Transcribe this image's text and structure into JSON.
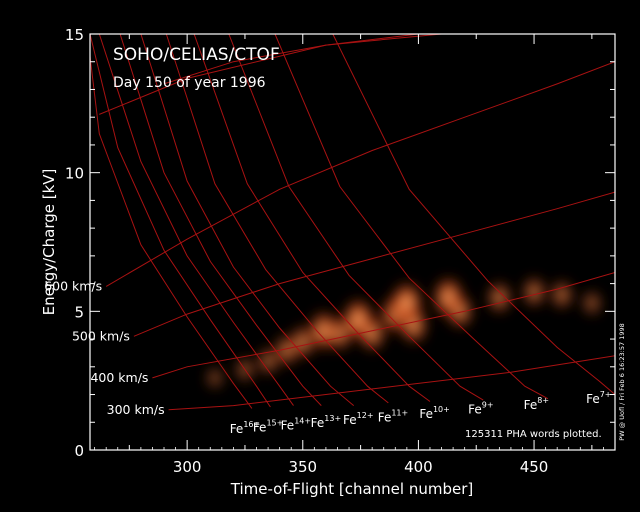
{
  "chart_data": {
    "type": "heatmap",
    "title": "SOHO/CELIAS/CTOF",
    "subtitle": "Day 150 of year 1996",
    "xlabel": "Time-of-Flight [channel number]",
    "ylabel": "Energy/Charge [kV]",
    "xlim": [
      258,
      485
    ],
    "ylim": [
      0,
      15
    ],
    "xticks": [
      "300",
      "350",
      "400",
      "450"
    ],
    "yticks": [
      "0",
      "5",
      "10",
      "15"
    ],
    "colors": {
      "background": "#000000",
      "frame": "#ffffff",
      "grid": "#a81212",
      "text": "#ffffff",
      "density_low": "#8a1a00",
      "density_high": "#ffb070"
    },
    "speed_labels": [
      {
        "text": "600 km/s",
        "speed": 600,
        "x_end": 265,
        "y_end": 5.9
      },
      {
        "text": "500 km/s",
        "speed": 500,
        "x_end": 277,
        "y_end": 4.1
      },
      {
        "text": "400 km/s",
        "speed": 400,
        "x_end": 285,
        "y_end": 2.6
      },
      {
        "text": "300 km/s",
        "speed": 300,
        "x_end": 292,
        "y_end": 1.45
      }
    ],
    "ion_labels": [
      {
        "base": "Fe",
        "charge": "16+",
        "x": 325,
        "y": 0.9
      },
      {
        "base": "Fe",
        "charge": "15+",
        "x": 335,
        "y": 0.96
      },
      {
        "base": "Fe",
        "charge": "14+",
        "x": 347,
        "y": 1.02
      },
      {
        "base": "Fe",
        "charge": "13+",
        "x": 360,
        "y": 1.12
      },
      {
        "base": "Fe",
        "charge": "12+",
        "x": 374,
        "y": 1.22
      },
      {
        "base": "Fe",
        "charge": "11+",
        "x": 389,
        "y": 1.32
      },
      {
        "base": "Fe",
        "charge": "10+",
        "x": 407,
        "y": 1.45
      },
      {
        "base": "Fe",
        "charge": "9+",
        "x": 427,
        "y": 1.6
      },
      {
        "base": "Fe",
        "charge": "8+",
        "x": 451,
        "y": 1.77
      },
      {
        "base": "Fe",
        "charge": "7+",
        "x": 478,
        "y": 1.98
      }
    ],
    "ion_tracks": [
      {
        "charge": 16,
        "x": [
          258,
          262,
          280,
          300,
          320,
          328
        ],
        "y": [
          14.2,
          11.4,
          7.4,
          4.8,
          2.4,
          1.5
        ]
      },
      {
        "charge": 15,
        "x": [
          258,
          270,
          290,
          310,
          330,
          336
        ],
        "y": [
          15,
          10.9,
          7.2,
          4.7,
          2.3,
          1.55
        ]
      },
      {
        "charge": 14,
        "x": [
          262,
          280,
          300,
          320,
          340,
          346
        ],
        "y": [
          15,
          10.4,
          7.0,
          4.6,
          2.3,
          1.6
        ]
      },
      {
        "charge": 13,
        "x": [
          271,
          290,
          310,
          330,
          350,
          358
        ],
        "y": [
          15,
          10.0,
          6.8,
          4.5,
          2.3,
          1.6
        ]
      },
      {
        "charge": 12,
        "x": [
          280,
          300,
          320,
          340,
          362,
          372
        ],
        "y": [
          15,
          9.7,
          6.6,
          4.4,
          2.3,
          1.6
        ]
      },
      {
        "charge": 11,
        "x": [
          291,
          312,
          334,
          356,
          378,
          387
        ],
        "y": [
          15,
          9.6,
          6.5,
          4.3,
          2.3,
          1.7
        ]
      },
      {
        "charge": 10,
        "x": [
          303,
          326,
          350,
          374,
          396,
          405
        ],
        "y": [
          15,
          9.6,
          6.4,
          4.2,
          2.3,
          1.75
        ]
      },
      {
        "charge": 9,
        "x": [
          318,
          344,
          370,
          396,
          418,
          428
        ],
        "y": [
          15,
          9.5,
          6.3,
          4.1,
          2.3,
          1.8
        ]
      },
      {
        "charge": 8,
        "x": [
          338,
          366,
          396,
          424,
          446,
          456
        ],
        "y": [
          15,
          9.5,
          6.2,
          4.0,
          2.3,
          1.85
        ]
      },
      {
        "charge": 7,
        "x": [
          363,
          396,
          430,
          460,
          478,
          485
        ],
        "y": [
          15,
          9.4,
          6.1,
          3.7,
          2.5,
          2.0
        ]
      }
    ],
    "speed_curves": [
      {
        "speed": 600,
        "x": [
          265,
          300,
          340,
          380,
          420,
          460,
          485
        ],
        "y": [
          5.9,
          7.6,
          9.4,
          10.8,
          12.0,
          13.2,
          14.0
        ]
      },
      {
        "speed": 500,
        "x": [
          277,
          300,
          340,
          380,
          420,
          460,
          485
        ],
        "y": [
          4.1,
          4.9,
          6.0,
          6.9,
          7.8,
          8.7,
          9.3
        ]
      },
      {
        "speed": 400,
        "x": [
          285,
          300,
          340,
          380,
          420,
          460,
          485
        ],
        "y": [
          2.6,
          3.0,
          3.6,
          4.3,
          5.0,
          5.8,
          6.4
        ]
      },
      {
        "speed": 300,
        "x": [
          292,
          320,
          360,
          400,
          440,
          470,
          485
        ],
        "y": [
          1.45,
          1.6,
          2.0,
          2.4,
          2.8,
          3.2,
          3.4
        ]
      }
    ],
    "upper_curves": [
      {
        "x": [
          290,
          320,
          360,
          400,
          435
        ],
        "y": [
          13.2,
          14.0,
          14.6,
          15.0,
          15.0
        ]
      },
      {
        "x": [
          262,
          300,
          360,
          410,
          444
        ],
        "y": [
          12.1,
          13.4,
          14.6,
          15.0,
          15.0
        ]
      }
    ],
    "density_blobs": [
      {
        "x": 335,
        "y": 3.2,
        "intensity": 0.45
      },
      {
        "x": 343,
        "y": 3.6,
        "intensity": 0.6
      },
      {
        "x": 350,
        "y": 3.9,
        "intensity": 0.65
      },
      {
        "x": 359,
        "y": 4.3,
        "intensity": 0.9
      },
      {
        "x": 366,
        "y": 4.2,
        "intensity": 0.7
      },
      {
        "x": 374,
        "y": 4.7,
        "intensity": 1.0
      },
      {
        "x": 380,
        "y": 4.2,
        "intensity": 0.75
      },
      {
        "x": 390,
        "y": 4.9,
        "intensity": 0.85
      },
      {
        "x": 395,
        "y": 5.3,
        "intensity": 1.0
      },
      {
        "x": 398,
        "y": 4.5,
        "intensity": 0.8
      },
      {
        "x": 413,
        "y": 5.5,
        "intensity": 0.95
      },
      {
        "x": 418,
        "y": 5.0,
        "intensity": 0.7
      },
      {
        "x": 435,
        "y": 5.5,
        "intensity": 0.6
      },
      {
        "x": 450,
        "y": 5.7,
        "intensity": 0.55
      },
      {
        "x": 462,
        "y": 5.6,
        "intensity": 0.5
      },
      {
        "x": 475,
        "y": 5.3,
        "intensity": 0.35
      },
      {
        "x": 325,
        "y": 2.9,
        "intensity": 0.35
      },
      {
        "x": 312,
        "y": 2.6,
        "intensity": 0.25
      }
    ],
    "annotations": {
      "pha_count": "125311 PHA words plotted.",
      "side_note": "PW @ Uofl / Fri Feb  6 16:23:57 1998"
    }
  }
}
